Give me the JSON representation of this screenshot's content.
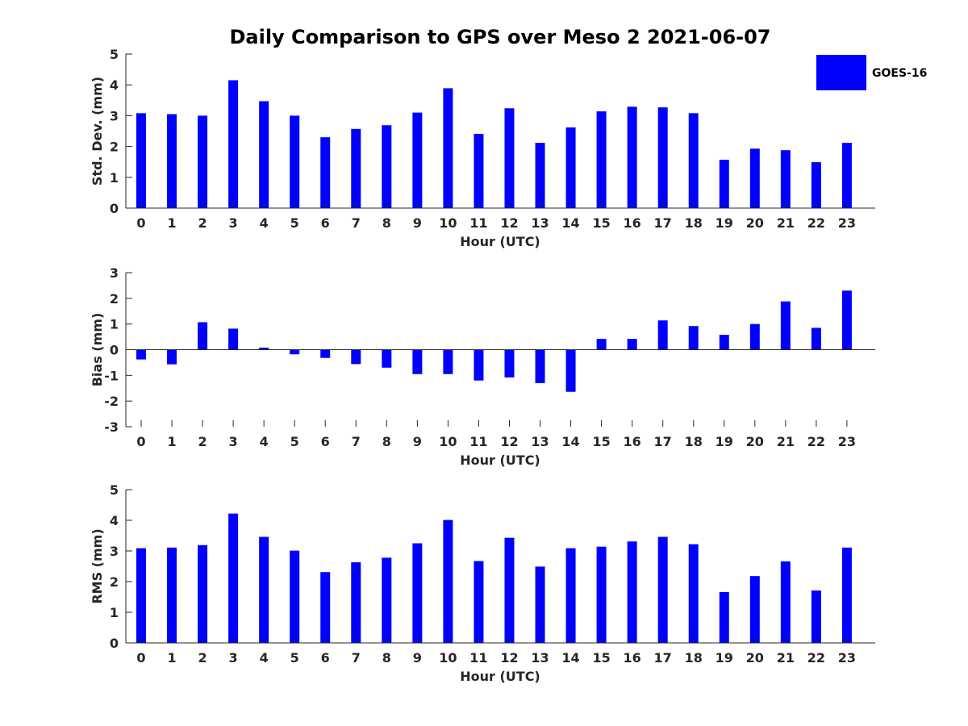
{
  "chart_data": {
    "type": "bar",
    "title": "Daily Comparison to GPS over Meso 2 2021-06-07",
    "legend": {
      "label": "GOES-16",
      "color": "#0000ff",
      "placement": "top-right"
    },
    "categories": [
      "0",
      "1",
      "2",
      "3",
      "4",
      "5",
      "6",
      "7",
      "8",
      "9",
      "10",
      "11",
      "12",
      "13",
      "14",
      "15",
      "16",
      "17",
      "18",
      "19",
      "20",
      "21",
      "22",
      "23"
    ],
    "panels": [
      {
        "name": "std-dev",
        "ylabel": "Std. Dev. (mm)",
        "xlabel": "Hour (UTC)",
        "ylim": [
          0,
          5
        ],
        "yticks": [
          "0",
          "1",
          "2",
          "3",
          "4",
          "5"
        ],
        "values": [
          3.08,
          3.05,
          3.0,
          4.15,
          3.47,
          3.0,
          2.3,
          2.57,
          2.69,
          3.1,
          3.89,
          2.41,
          3.24,
          2.12,
          2.62,
          3.14,
          3.29,
          3.27,
          3.08,
          1.57,
          1.93,
          1.88,
          1.49,
          2.12
        ]
      },
      {
        "name": "bias",
        "ylabel": "Bias (mm)",
        "xlabel": "Hour (UTC)",
        "ylim": [
          -3,
          3
        ],
        "yticks": [
          "-3",
          "-2",
          "-1",
          "0",
          "1",
          "2",
          "3"
        ],
        "values": [
          -0.38,
          -0.57,
          1.07,
          0.82,
          0.08,
          -0.18,
          -0.32,
          -0.56,
          -0.7,
          -0.95,
          -0.95,
          -1.2,
          -1.08,
          -1.3,
          -1.64,
          0.42,
          0.42,
          1.14,
          0.92,
          0.58,
          1.0,
          1.88,
          0.85,
          2.3
        ]
      },
      {
        "name": "rms",
        "ylabel": "RMS (mm)",
        "xlabel": "Hour (UTC)",
        "ylim": [
          0,
          5
        ],
        "yticks": [
          "0",
          "1",
          "2",
          "3",
          "4",
          "5"
        ],
        "values": [
          3.09,
          3.11,
          3.19,
          4.22,
          3.46,
          3.01,
          2.31,
          2.63,
          2.78,
          3.25,
          4.01,
          2.67,
          3.43,
          2.49,
          3.09,
          3.14,
          3.31,
          3.46,
          3.22,
          1.66,
          2.18,
          2.66,
          1.71,
          3.11
        ]
      }
    ]
  }
}
